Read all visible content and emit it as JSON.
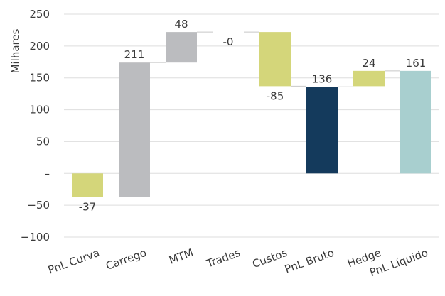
{
  "chart_data": {
    "type": "waterfall",
    "ylabel": "Milhares",
    "ylim": [
      -100,
      250
    ],
    "y_ticks": [
      250,
      200,
      150,
      100,
      50,
      0,
      -50,
      -100
    ],
    "y_tick_labels": [
      "250",
      "200",
      "150",
      "100",
      "50",
      "–",
      "−50",
      "−100"
    ],
    "grid": "horizontal",
    "categories": [
      "PnL Curva",
      "Carrego",
      "MTM",
      "Trades",
      "Custos",
      "PnL Bruto",
      "Hedge",
      "PnL Líquido"
    ],
    "bars": [
      {
        "category": "PnL Curva",
        "kind": "delta",
        "start": 0,
        "end": -37,
        "label": "-37",
        "label_pos": "below",
        "color": "#d4d67a"
      },
      {
        "category": "Carrego",
        "kind": "delta",
        "start": -37,
        "end": 174,
        "label": "211",
        "label_pos": "above",
        "color": "#bbbcbf"
      },
      {
        "category": "MTM",
        "kind": "delta",
        "start": 174,
        "end": 222,
        "label": "48",
        "label_pos": "above",
        "color": "#bbbcbf"
      },
      {
        "category": "Trades",
        "kind": "delta",
        "start": 222,
        "end": 222,
        "label": "-0",
        "label_pos": "below",
        "color": "#bbbcbf"
      },
      {
        "category": "Custos",
        "kind": "delta",
        "start": 222,
        "end": 137,
        "label": "-85",
        "label_pos": "below",
        "color": "#d4d67a"
      },
      {
        "category": "PnL Bruto",
        "kind": "total",
        "start": 0,
        "end": 136,
        "label": "136",
        "label_pos": "above",
        "color": "#143a5c"
      },
      {
        "category": "Hedge",
        "kind": "delta",
        "start": 137,
        "end": 161,
        "label": "24",
        "label_pos": "above",
        "color": "#d4d67a"
      },
      {
        "category": "PnL Líquido",
        "kind": "total",
        "start": 0,
        "end": 161,
        "label": "161",
        "label_pos": "above",
        "color": "#a8cfcf"
      }
    ]
  }
}
